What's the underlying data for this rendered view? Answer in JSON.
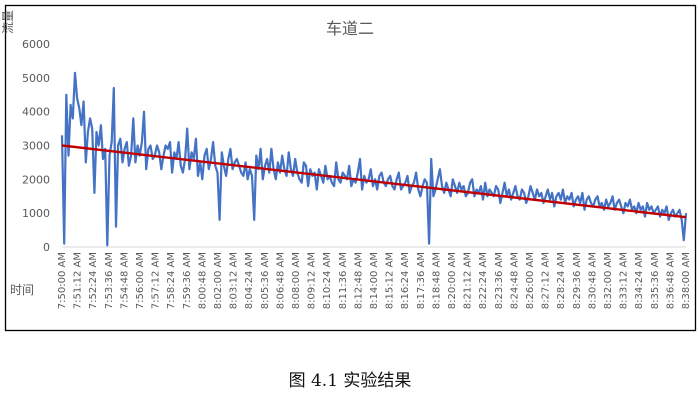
{
  "caption": "图 4.1 实验结果",
  "chart_data": {
    "type": "line",
    "title": "车道二",
    "ylabel": "流量",
    "xlabel": "时间",
    "ylim": [
      0,
      6000
    ],
    "yticks": [
      0,
      1000,
      2000,
      3000,
      4000,
      5000,
      6000
    ],
    "xticks": [
      "7:50:00 AM",
      "7:51:12 AM",
      "7:52:24 AM",
      "7:53:36 AM",
      "7:54:48 AM",
      "7:56:00 AM",
      "7:57:12 AM",
      "7:58:24 AM",
      "7:59:36 AM",
      "8:00:48 AM",
      "8:02:00 AM",
      "8:03:12 AM",
      "8:04:24 AM",
      "8:05:36 AM",
      "8:06:48 AM",
      "8:08:00 AM",
      "8:09:12 AM",
      "8:10:24 AM",
      "8:11:36 AM",
      "8:12:48 AM",
      "8:14:00 AM",
      "8:15:12 AM",
      "8:16:24 AM",
      "8:17:36 AM",
      "8:18:48 AM",
      "8:20:00 AM",
      "8:21:12 AM",
      "8:22:24 AM",
      "8:23:36 AM",
      "8:24:48 AM",
      "8:26:00 AM",
      "8:27:12 AM",
      "8:28:24 AM",
      "8:29:36 AM",
      "8:30:48 AM",
      "8:32:00 AM",
      "8:33:12 AM",
      "8:34:24 AM",
      "8:35:36 AM",
      "8:36:48 AM",
      "8:38:00 AM"
    ],
    "grid": false,
    "series": [
      {
        "color": "#4472c4",
        "values": [
          3300,
          100,
          4500,
          2700,
          4200,
          3800,
          5150,
          4400,
          4100,
          3600,
          4300,
          2500,
          3400,
          3800,
          3500,
          1600,
          3400,
          3000,
          3600,
          2600,
          2900,
          50,
          2700,
          3100,
          4700,
          600,
          3000,
          3200,
          2500,
          2900,
          3100,
          2400,
          2700,
          3800,
          2500,
          3000,
          2700,
          3100,
          4000,
          2300,
          2900,
          3000,
          2600,
          2700,
          3000,
          2800,
          2300,
          2700,
          3000,
          2900,
          3100,
          2200,
          2800,
          2600,
          3100,
          2400,
          2200,
          2600,
          3500,
          2300,
          2800,
          2600,
          3200,
          2100,
          2500,
          2000,
          2700,
          2900,
          2300,
          2600,
          3100,
          2400,
          2200,
          800,
          2800,
          2400,
          2100,
          2600,
          2900,
          2300,
          2500,
          2600,
          2400,
          2200,
          2100,
          2500,
          2000,
          2300,
          2100,
          800,
          2700,
          2300,
          2900,
          2000,
          2400,
          2600,
          2200,
          2900,
          2300,
          2000,
          2500,
          2200,
          2700,
          2300,
          2100,
          2800,
          2300,
          2100,
          2600,
          2200,
          2000,
          1900,
          2500,
          2400,
          1800,
          2300,
          2100,
          2200,
          1700,
          2300,
          2100,
          1900,
          2400,
          2000,
          2100,
          1900,
          1800,
          2500,
          2000,
          1900,
          2200,
          2100,
          2000,
          2400,
          1800,
          2000,
          1900,
          2200,
          2600,
          1700,
          2100,
          1900,
          2000,
          2300,
          1800,
          2000,
          1700,
          2100,
          2200,
          1900,
          1800,
          2000,
          2100,
          1800,
          1700,
          2000,
          2200,
          1700,
          1800,
          1900,
          2100,
          1600,
          1800,
          1900,
          2200,
          1700,
          1500,
          1800,
          2000,
          1900,
          100,
          2600,
          1500,
          1700,
          2000,
          2300,
          1800,
          1600,
          1900,
          1700,
          1500,
          2000,
          1800,
          1600,
          1900,
          1700,
          1800,
          1500,
          1600,
          1900,
          2000,
          1500,
          1700,
          1600,
          1800,
          1400,
          1900,
          1500,
          1700,
          1600,
          1500,
          1800,
          1700,
          1300,
          1600,
          1900,
          1500,
          1700,
          1400,
          1600,
          1800,
          1500,
          1400,
          1700,
          1600,
          1300,
          1500,
          1800,
          1600,
          1400,
          1700,
          1500,
          1600,
          1300,
          1500,
          1700,
          1400,
          1600,
          1200,
          1500,
          1600,
          1400,
          1700,
          1300,
          1500,
          1400,
          1600,
          1200,
          1400,
          1500,
          1300,
          1600,
          1100,
          1400,
          1500,
          1300,
          1200,
          1400,
          1500,
          1200,
          1300,
          1100,
          1400,
          1200,
          1300,
          1500,
          1100,
          1300,
          1400,
          1200,
          1000,
          1300,
          1200,
          1400,
          1100,
          1200,
          1000,
          1300,
          1100,
          1200,
          900,
          1300,
          1100,
          1200,
          1000,
          1100,
          1200,
          900,
          1100,
          1000,
          1200,
          800,
          1000,
          1100,
          900,
          1000,
          1100,
          800,
          200,
          1000
        ]
      }
    ],
    "trendline": {
      "color": "#c00000",
      "start": 3000,
      "end": 880
    }
  }
}
